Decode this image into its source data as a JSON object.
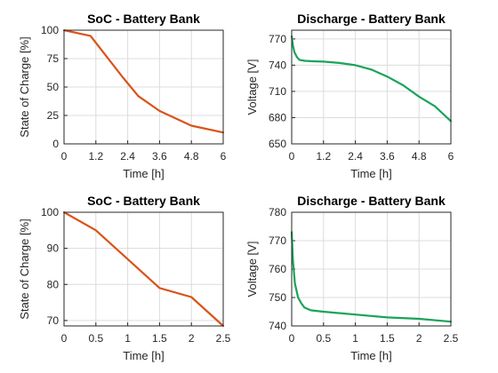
{
  "colors": {
    "soc": "#D95319",
    "voltage": "#1AA35A"
  },
  "chart_data": [
    {
      "type": "line",
      "title": "SoC - Battery Bank",
      "xlabel": "Time [h]",
      "ylabel": "State of Charge [%]",
      "xlim": [
        0,
        6
      ],
      "ylim": [
        0,
        100
      ],
      "xticks": [
        "0",
        "1.2",
        "2.4",
        "3.6",
        "4.8",
        "6"
      ],
      "yticks": [
        "0",
        "25",
        "50",
        "75",
        "100"
      ],
      "grid": true,
      "x": [
        0,
        1,
        1.6,
        2.2,
        2.8,
        3.6,
        4.8,
        6
      ],
      "series": [
        {
          "values": [
            100,
            95,
            77,
            59,
            42,
            29,
            16,
            10
          ]
        }
      ]
    },
    {
      "type": "line",
      "title": "Discharge - Battery Bank",
      "xlabel": "Time [h]",
      "ylabel": "Voltage [V]",
      "xlim": [
        0,
        6
      ],
      "ylim": [
        650,
        780
      ],
      "xticks": [
        "0",
        "1.2",
        "2.4",
        "3.6",
        "4.8",
        "6"
      ],
      "yticks": [
        "650",
        "680",
        "710",
        "740",
        "770"
      ],
      "grid": true,
      "x": [
        0,
        0.05,
        0.1,
        0.2,
        0.3,
        0.5,
        0.8,
        1.2,
        1.8,
        2.4,
        3.0,
        3.6,
        4.2,
        4.8,
        5.4,
        6
      ],
      "series": [
        {
          "values": [
            773,
            762,
            755,
            749,
            746,
            745,
            744.5,
            744,
            742.5,
            740,
            735,
            727,
            717,
            704,
            693,
            676
          ]
        }
      ]
    },
    {
      "type": "line",
      "title": "SoC - Battery Bank",
      "xlabel": "Time [h]",
      "ylabel": "State of Charge [%]",
      "xlim": [
        0,
        2.5
      ],
      "ylim": [
        68.5,
        100
      ],
      "xticks": [
        "0",
        "0.5",
        "1",
        "1.5",
        "2",
        "2.5"
      ],
      "yticks": [
        "70",
        "80",
        "90",
        "100"
      ],
      "grid": true,
      "x": [
        0,
        0.5,
        1,
        1.5,
        2,
        2.5
      ],
      "series": [
        {
          "values": [
            100,
            95,
            87,
            79,
            76.5,
            68.5
          ]
        }
      ]
    },
    {
      "type": "line",
      "title": "Discharge - Battery Bank",
      "xlabel": "Time [h]",
      "ylabel": "Voltage [V]",
      "xlim": [
        0,
        2.5
      ],
      "ylim": [
        740,
        780
      ],
      "xticks": [
        "0",
        "0.5",
        "1",
        "1.5",
        "2",
        "2.5"
      ],
      "yticks": [
        "740",
        "750",
        "760",
        "770",
        "780"
      ],
      "grid": true,
      "x": [
        0,
        0.02,
        0.05,
        0.1,
        0.15,
        0.2,
        0.3,
        0.5,
        1,
        1.5,
        2,
        2.5
      ],
      "series": [
        {
          "values": [
            773,
            763,
            755,
            750,
            748,
            746.5,
            745.5,
            745,
            744,
            743,
            742.5,
            741.5
          ]
        }
      ]
    }
  ]
}
